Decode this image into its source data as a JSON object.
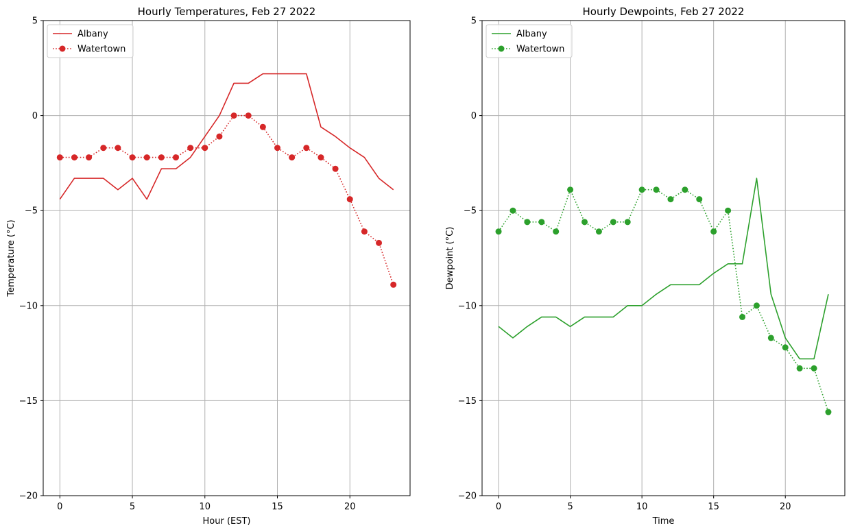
{
  "chart_data": [
    {
      "type": "line",
      "title": "Hourly Temperatures, Feb 27 2022",
      "xlabel": "Hour (EST)",
      "ylabel": "Temperature (°C)",
      "xlim": [
        -1.15,
        24.15
      ],
      "ylim": [
        -20,
        5
      ],
      "grid": true,
      "legend_position": "top-left",
      "xticks": [
        0,
        5,
        10,
        15,
        20
      ],
      "xtick_labels": [
        "0",
        "5",
        "10",
        "15",
        "20"
      ],
      "yticks": [
        -20,
        -15,
        -10,
        -5,
        0,
        5
      ],
      "ytick_labels": [
        "−20",
        "−15",
        "−10",
        "−5",
        "0",
        "5"
      ],
      "series": [
        {
          "name": "Albany",
          "color": "#d62728",
          "style": "solid",
          "marker": "none",
          "x": [
            0,
            1,
            2,
            3,
            4,
            5,
            6,
            7,
            8,
            9,
            10,
            11,
            12,
            13,
            14,
            15,
            16,
            17,
            18,
            19,
            20,
            21,
            22,
            23
          ],
          "values": [
            -4.4,
            -3.3,
            -3.3,
            -3.3,
            -3.9,
            -3.3,
            -4.4,
            -2.8,
            -2.8,
            -2.2,
            -1.1,
            0.0,
            1.7,
            1.7,
            2.2,
            2.2,
            2.2,
            2.2,
            -0.6,
            -1.1,
            -1.7,
            -2.2,
            -3.3,
            -3.9
          ]
        },
        {
          "name": "Watertown",
          "color": "#d62728",
          "style": "dotted",
          "marker": "circle",
          "x": [
            0,
            1,
            2,
            3,
            4,
            5,
            6,
            7,
            8,
            9,
            10,
            11,
            12,
            13,
            14,
            15,
            16,
            17,
            18,
            19,
            20,
            21,
            22,
            23
          ],
          "values": [
            -2.2,
            -2.2,
            -2.2,
            -1.7,
            -1.7,
            -2.2,
            -2.2,
            -2.2,
            -2.2,
            -1.7,
            -1.7,
            -1.1,
            0.0,
            0.0,
            -0.6,
            -1.7,
            -2.2,
            -1.7,
            -2.2,
            -2.8,
            -4.4,
            -6.1,
            -6.7,
            -8.9
          ]
        }
      ]
    },
    {
      "type": "line",
      "title": "Hourly Dewpoints, Feb 27 2022",
      "xlabel": "Time",
      "ylabel": "Dewpoint (°C)",
      "xlim": [
        -1.15,
        24.15
      ],
      "ylim": [
        -20,
        5
      ],
      "grid": true,
      "legend_position": "top-left",
      "xticks": [
        0,
        5,
        10,
        15,
        20
      ],
      "xtick_labels": [
        "0",
        "5",
        "10",
        "15",
        "20"
      ],
      "yticks": [
        -20,
        -15,
        -10,
        -5,
        0,
        5
      ],
      "ytick_labels": [
        "−20",
        "−15",
        "−10",
        "−5",
        "0",
        "5"
      ],
      "series": [
        {
          "name": "Albany",
          "color": "#2ca02c",
          "style": "solid",
          "marker": "none",
          "x": [
            0,
            1,
            2,
            3,
            4,
            5,
            6,
            7,
            8,
            9,
            10,
            11,
            12,
            13,
            14,
            15,
            16,
            17,
            18,
            19,
            20,
            21,
            22,
            23
          ],
          "values": [
            -11.1,
            -11.7,
            -11.1,
            -10.6,
            -10.6,
            -11.1,
            -10.6,
            -10.6,
            -10.6,
            -10.0,
            -10.0,
            -9.4,
            -8.9,
            -8.9,
            -8.9,
            -8.3,
            -7.8,
            -7.8,
            -3.3,
            -9.4,
            -11.7,
            -12.8,
            -12.8,
            -9.4
          ]
        },
        {
          "name": "Watertown",
          "color": "#2ca02c",
          "style": "dotted",
          "marker": "circle",
          "x": [
            0,
            1,
            2,
            3,
            4,
            5,
            6,
            7,
            8,
            9,
            10,
            11,
            12,
            13,
            14,
            15,
            16,
            17,
            18,
            19,
            20,
            21,
            22,
            23
          ],
          "values": [
            -6.1,
            -5.0,
            -5.6,
            -5.6,
            -6.1,
            -3.9,
            -5.6,
            -6.1,
            -5.6,
            -5.6,
            -3.9,
            -3.9,
            -4.4,
            -3.9,
            -4.4,
            -6.1,
            -5.0,
            -10.6,
            -10.0,
            -11.7,
            -12.2,
            -13.3,
            -13.3,
            -15.6
          ]
        }
      ]
    }
  ]
}
